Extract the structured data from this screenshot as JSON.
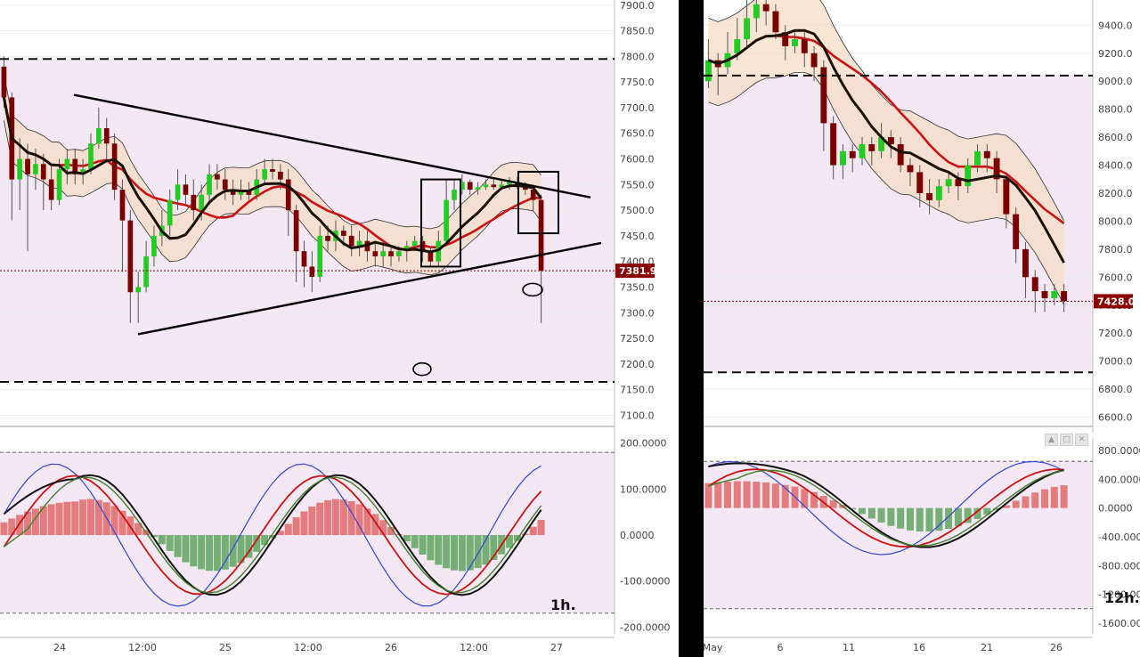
{
  "timeframes": {
    "left": "1h.",
    "right": "12h."
  },
  "colors": {
    "bull": "#22cc22",
    "bear": "#7a0000",
    "red": "#cc1111",
    "blue": "#3344dd",
    "green_osc": "#3f7f2a",
    "band_fill": "#f6dcc6",
    "bg_zone": "#f3e8f3"
  },
  "icons": [
    "window-up-icon",
    "window-maximize-icon",
    "close-icon"
  ],
  "chart_data": [
    {
      "type": "candlestick",
      "panel": "left-price",
      "timeframe": "1h.",
      "y_ticks": [
        "7900.0",
        "7850.0",
        "7800.0",
        "7750.0",
        "7700.0",
        "7650.0",
        "7600.0",
        "7550.0",
        "7500.0",
        "7450.0",
        "7400.0",
        "7350.0",
        "7300.0",
        "7250.0",
        "7200.0",
        "7150.0",
        "7100.0"
      ],
      "x_ticks": [
        "24",
        "12:00",
        "25",
        "12:00",
        "26",
        "12:00",
        "27"
      ],
      "ylim": [
        7080,
        7910
      ],
      "last_price": "7381.9",
      "dashed_levels": [
        7795,
        7165
      ],
      "dotted_level": 7381.9,
      "candles": [
        [
          7780,
          7720,
          7800,
          7700
        ],
        [
          7720,
          7560,
          7730,
          7480
        ],
        [
          7560,
          7600,
          7640,
          7500
        ],
        [
          7600,
          7570,
          7630,
          7420
        ],
        [
          7570,
          7590,
          7620,
          7540
        ],
        [
          7590,
          7560,
          7610,
          7500
        ],
        [
          7560,
          7520,
          7590,
          7500
        ],
        [
          7520,
          7580,
          7600,
          7510
        ],
        [
          7580,
          7600,
          7620,
          7550
        ],
        [
          7600,
          7570,
          7620,
          7550
        ],
        [
          7570,
          7580,
          7600,
          7550
        ],
        [
          7580,
          7630,
          7650,
          7570
        ],
        [
          7630,
          7660,
          7700,
          7620
        ],
        [
          7660,
          7630,
          7680,
          7600
        ],
        [
          7630,
          7540,
          7650,
          7520
        ],
        [
          7540,
          7480,
          7560,
          7380
        ],
        [
          7480,
          7340,
          7500,
          7280
        ],
        [
          7340,
          7350,
          7380,
          7280
        ],
        [
          7350,
          7410,
          7440,
          7340
        ],
        [
          7410,
          7450,
          7470,
          7390
        ],
        [
          7450,
          7470,
          7500,
          7430
        ],
        [
          7470,
          7520,
          7540,
          7450
        ],
        [
          7520,
          7550,
          7580,
          7500
        ],
        [
          7550,
          7530,
          7570,
          7510
        ],
        [
          7530,
          7500,
          7560,
          7480
        ],
        [
          7500,
          7530,
          7550,
          7480
        ],
        [
          7530,
          7570,
          7590,
          7510
        ],
        [
          7570,
          7560,
          7590,
          7540
        ],
        [
          7560,
          7540,
          7580,
          7520
        ],
        [
          7540,
          7530,
          7560,
          7510
        ],
        [
          7530,
          7540,
          7560,
          7520
        ],
        [
          7540,
          7530,
          7555,
          7520
        ],
        [
          7530,
          7560,
          7580,
          7520
        ],
        [
          7560,
          7580,
          7600,
          7550
        ],
        [
          7580,
          7575,
          7600,
          7560
        ],
        [
          7575,
          7560,
          7590,
          7540
        ],
        [
          7560,
          7500,
          7580,
          7450
        ],
        [
          7500,
          7420,
          7510,
          7360
        ],
        [
          7420,
          7390,
          7440,
          7350
        ],
        [
          7390,
          7370,
          7420,
          7340
        ],
        [
          7370,
          7450,
          7470,
          7360
        ],
        [
          7450,
          7440,
          7470,
          7420
        ],
        [
          7440,
          7460,
          7480,
          7420
        ],
        [
          7460,
          7450,
          7470,
          7430
        ],
        [
          7450,
          7430,
          7470,
          7410
        ],
        [
          7430,
          7440,
          7460,
          7410
        ],
        [
          7440,
          7420,
          7460,
          7400
        ],
        [
          7420,
          7410,
          7440,
          7390
        ],
        [
          7410,
          7420,
          7440,
          7390
        ],
        [
          7420,
          7410,
          7430,
          7390
        ],
        [
          7410,
          7420,
          7430,
          7400
        ],
        [
          7420,
          7430,
          7440,
          7400
        ],
        [
          7430,
          7440,
          7450,
          7420
        ],
        [
          7440,
          7420,
          7450,
          7400
        ],
        [
          7420,
          7400,
          7430,
          7390
        ],
        [
          7400,
          7440,
          7460,
          7390
        ],
        [
          7440,
          7520,
          7560,
          7430
        ],
        [
          7520,
          7540,
          7560,
          7500
        ],
        [
          7540,
          7555,
          7570,
          7530
        ],
        [
          7555,
          7540,
          7560,
          7530
        ],
        [
          7540,
          7545,
          7555,
          7530
        ],
        [
          7545,
          7550,
          7560,
          7540
        ],
        [
          7550,
          7545,
          7560,
          7540
        ],
        [
          7545,
          7550,
          7560,
          7540
        ],
        [
          7550,
          7555,
          7565,
          7540
        ],
        [
          7555,
          7545,
          7565,
          7540
        ],
        [
          7545,
          7540,
          7555,
          7530
        ],
        [
          7540,
          7520,
          7550,
          7500
        ],
        [
          7520,
          7382,
          7530,
          7280
        ]
      ],
      "trend_lines": [
        {
          "from_x": "24 03:00",
          "from_y": 7725,
          "to_x": "26 23:00",
          "to_y": 7525
        },
        {
          "from_x": "24 10:00",
          "from_y": 7258,
          "to_x": "27 02:00",
          "to_y": 7436
        }
      ]
    },
    {
      "type": "oscillator",
      "panel": "left-indicator",
      "y_ticks": [
        "200.0000",
        "100.0000",
        "0.0000",
        "-100.0000",
        "-200.0000"
      ],
      "ylim": [
        -215,
        215
      ],
      "dashed_levels": [
        180,
        -170
      ]
    },
    {
      "type": "candlestick",
      "panel": "right-price",
      "timeframe": "12h.",
      "y_ticks": [
        "9400.0",
        "9200.0",
        "9000.0",
        "8800.0",
        "8600.0",
        "8400.0",
        "8200.0",
        "8000.0",
        "7800.0",
        "7600.0",
        "7400.0",
        "7200.0",
        "7000.0",
        "6800.0",
        "6600.0"
      ],
      "x_ticks": [
        "May",
        "6",
        "11",
        "16",
        "21",
        "26"
      ],
      "ylim": [
        6540,
        9580
      ],
      "last_price": "7428.0",
      "dashed_levels": [
        9040,
        6920
      ],
      "dotted_level": 7428.0,
      "candles": [
        [
          9000,
          9150,
          9300,
          8950
        ],
        [
          9150,
          9100,
          9200,
          8900
        ],
        [
          9100,
          9200,
          9350,
          9050
        ],
        [
          9200,
          9300,
          9450,
          9150
        ],
        [
          9300,
          9450,
          9700,
          9250
        ],
        [
          9450,
          9550,
          9650,
          9350
        ],
        [
          9550,
          9500,
          9600,
          9400
        ],
        [
          9500,
          9350,
          9550,
          9300
        ],
        [
          9350,
          9250,
          9400,
          9150
        ],
        [
          9250,
          9300,
          9350,
          9200
        ],
        [
          9300,
          9200,
          9350,
          9100
        ],
        [
          9200,
          9100,
          9250,
          9000
        ],
        [
          9100,
          8700,
          9150,
          8500
        ],
        [
          8700,
          8400,
          8750,
          8300
        ],
        [
          8400,
          8500,
          8550,
          8300
        ],
        [
          8500,
          8450,
          8550,
          8350
        ],
        [
          8450,
          8550,
          8600,
          8400
        ],
        [
          8550,
          8500,
          8600,
          8400
        ],
        [
          8500,
          8600,
          8700,
          8450
        ],
        [
          8600,
          8550,
          8650,
          8450
        ],
        [
          8550,
          8400,
          8600,
          8350
        ],
        [
          8400,
          8350,
          8450,
          8250
        ],
        [
          8350,
          8200,
          8400,
          8100
        ],
        [
          8200,
          8150,
          8300,
          8050
        ],
        [
          8150,
          8250,
          8300,
          8100
        ],
        [
          8250,
          8300,
          8350,
          8200
        ],
        [
          8300,
          8250,
          8350,
          8150
        ],
        [
          8250,
          8400,
          8450,
          8200
        ],
        [
          8400,
          8500,
          8550,
          8350
        ],
        [
          8500,
          8450,
          8550,
          8350
        ],
        [
          8450,
          8300,
          8500,
          8200
        ],
        [
          8300,
          8050,
          8350,
          7950
        ],
        [
          8050,
          7800,
          8100,
          7700
        ],
        [
          7800,
          7600,
          7850,
          7450
        ],
        [
          7600,
          7500,
          7650,
          7350
        ],
        [
          7500,
          7450,
          7550,
          7350
        ],
        [
          7450,
          7500,
          7550,
          7400
        ],
        [
          7500,
          7428,
          7550,
          7350
        ]
      ]
    },
    {
      "type": "oscillator",
      "panel": "right-indicator",
      "y_ticks": [
        "800.0000",
        "400.0000",
        "0.0000",
        "-400.0000",
        "-800.0000",
        "-1200.0000",
        "-1600.0000"
      ],
      "ylim": [
        -1750,
        900
      ],
      "dashed_levels": [
        650,
        -1400
      ]
    }
  ]
}
